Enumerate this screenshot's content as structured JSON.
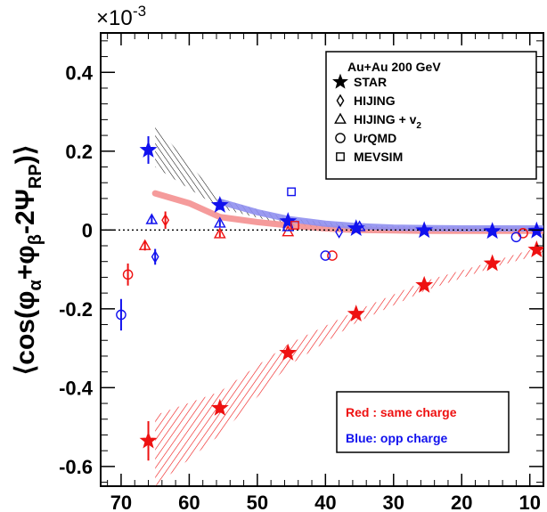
{
  "chart_data": {
    "type": "scatter",
    "title": "",
    "xlabel": "",
    "ylabel": "⟨cos(φα+φβ-2ΨRP)⟩",
    "ylabel_parts": {
      "open": "⟨cos(φ",
      "sub_alpha": "α",
      "plus_phi": "+φ",
      "sub_beta": "β",
      "minus_psi": "-2Ψ",
      "sub_rp": "RP",
      "close": ")⟩"
    },
    "y_scale_label": "×10",
    "y_scale_exponent": "-3",
    "xlim": [
      73,
      8
    ],
    "ylim": [
      -0.65,
      0.5
    ],
    "x_ticks": [
      70,
      60,
      50,
      40,
      30,
      20,
      10
    ],
    "x_tick_labels": [
      "70",
      "60",
      "50",
      "40",
      "30",
      "20",
      "10"
    ],
    "y_ticks": [
      -0.6,
      -0.4,
      -0.2,
      0,
      0.2,
      0.4
    ],
    "y_tick_labels": [
      "-0.6",
      "-0.4",
      "-0.2",
      "0",
      "0.2",
      "0.4"
    ],
    "reference_line": {
      "y": 0,
      "style": "dotted"
    },
    "legend": {
      "title": "Au+Au 200 GeV",
      "entries": [
        {
          "marker": "star",
          "label": "STAR"
        },
        {
          "marker": "diamond",
          "label": "HIJING"
        },
        {
          "marker": "triangle",
          "label": "HIJING + v",
          "sub": "2"
        },
        {
          "marker": "circle",
          "label": "UrQMD"
        },
        {
          "marker": "square",
          "label": "MEVSIM"
        }
      ]
    },
    "annotations": [
      {
        "text": "Red : same charge",
        "color": "#ee1111"
      },
      {
        "text": "Blue:  opp charge",
        "color": "#1111ee"
      }
    ],
    "colors": {
      "same": "#ee1111",
      "opp": "#1111ee",
      "same_band": "#f49090",
      "opp_band": "#8f8ff0"
    },
    "series": [
      {
        "name": "STAR same charge",
        "marker": "star",
        "filled": true,
        "color": "same",
        "points": [
          {
            "x": 66,
            "y": -0.535,
            "err": 0.05
          },
          {
            "x": 55.5,
            "y": -0.452,
            "err": 0.012
          },
          {
            "x": 45.5,
            "y": -0.312,
            "err": 0.008
          },
          {
            "x": 35.5,
            "y": -0.213,
            "err": 0.006
          },
          {
            "x": 25.5,
            "y": -0.14,
            "err": 0.005
          },
          {
            "x": 15.5,
            "y": -0.085,
            "err": 0.004
          },
          {
            "x": 9,
            "y": -0.05,
            "err": 0.004
          }
        ]
      },
      {
        "name": "STAR opp charge",
        "marker": "star",
        "filled": true,
        "color": "opp",
        "points": [
          {
            "x": 66,
            "y": 0.203,
            "err": 0.035
          },
          {
            "x": 55.5,
            "y": 0.063,
            "err": 0.012
          },
          {
            "x": 45.5,
            "y": 0.022,
            "err": 0.008
          },
          {
            "x": 35.5,
            "y": 0.004,
            "err": 0.006
          },
          {
            "x": 25.5,
            "y": -0.001,
            "err": 0.005
          },
          {
            "x": 15.5,
            "y": -0.003,
            "err": 0.004
          },
          {
            "x": 9,
            "y": -0.002,
            "err": 0.004
          }
        ]
      },
      {
        "name": "HIJING same charge",
        "marker": "diamond",
        "filled": false,
        "color": "same",
        "points": [
          {
            "x": 63.5,
            "y": 0.025,
            "err": 0.022
          }
        ]
      },
      {
        "name": "HIJING opp charge",
        "marker": "diamond",
        "filled": false,
        "color": "opp",
        "points": [
          {
            "x": 65,
            "y": -0.068,
            "err": 0.02
          },
          {
            "x": 38,
            "y": -0.005,
            "err": 0
          }
        ]
      },
      {
        "name": "HIJING+v2 same charge",
        "marker": "triangle",
        "filled": false,
        "color": "same",
        "points": [
          {
            "x": 66.5,
            "y": -0.04,
            "err": 0.012
          },
          {
            "x": 55.5,
            "y": -0.01,
            "err": 0.008
          },
          {
            "x": 45.5,
            "y": -0.005,
            "err": 0
          }
        ]
      },
      {
        "name": "HIJING+v2 opp charge",
        "marker": "triangle",
        "filled": false,
        "color": "opp",
        "points": [
          {
            "x": 65.5,
            "y": 0.026,
            "err": 0.01
          },
          {
            "x": 55.5,
            "y": 0.017,
            "err": 0.008
          },
          {
            "x": 45.5,
            "y": 0.008,
            "err": 0
          },
          {
            "x": 35,
            "y": 0.008,
            "err": 0
          }
        ]
      },
      {
        "name": "UrQMD same charge",
        "marker": "circle",
        "filled": false,
        "color": "same",
        "points": [
          {
            "x": 69,
            "y": -0.113,
            "err": 0.028
          },
          {
            "x": 39,
            "y": -0.065,
            "err": 0
          },
          {
            "x": 11,
            "y": -0.008,
            "err": 0
          }
        ]
      },
      {
        "name": "UrQMD opp charge",
        "marker": "circle",
        "filled": false,
        "color": "opp",
        "points": [
          {
            "x": 70,
            "y": -0.215,
            "err": 0.04
          },
          {
            "x": 40,
            "y": -0.065,
            "err": 0
          },
          {
            "x": 12,
            "y": -0.018,
            "err": 0
          }
        ]
      },
      {
        "name": "MEVSIM same charge",
        "marker": "square",
        "filled": false,
        "color": "same",
        "points": [
          {
            "x": 44.5,
            "y": 0.012,
            "err": 0
          }
        ]
      },
      {
        "name": "MEVSIM opp charge",
        "marker": "square",
        "filled": false,
        "color": "opp",
        "points": [
          {
            "x": 45,
            "y": 0.097,
            "err": 0
          }
        ]
      }
    ],
    "bands": [
      {
        "name": "same charge expectation band",
        "color": "same",
        "x": [
          65,
          55.5,
          45.5,
          35.5,
          25.5,
          15.5,
          8
        ],
        "upper": [
          -0.47,
          -0.41,
          -0.29,
          -0.205,
          -0.13,
          -0.08,
          -0.04
        ],
        "lower": [
          -0.65,
          -0.52,
          -0.345,
          -0.235,
          -0.155,
          -0.095,
          -0.06
        ]
      },
      {
        "name": "opp charge expectation band",
        "color": "opp",
        "x": [
          65,
          55.5,
          45.5,
          35.5,
          25.5,
          15.5,
          8
        ],
        "upper": [
          0.265,
          0.08,
          0.03,
          0.012,
          0.008,
          0.006,
          0.005
        ],
        "lower": [
          0.16,
          0.055,
          0.012,
          0.001,
          -0.002,
          -0.003,
          -0.003
        ]
      }
    ],
    "curves": [
      {
        "name": "same charge model curve",
        "color": "same_band",
        "x": [
          65,
          60,
          55.5,
          50,
          45.5,
          40,
          35.5,
          30,
          25.5,
          20,
          15.5,
          10,
          8
        ],
        "y": [
          0.093,
          0.068,
          0.033,
          0.02,
          0.012,
          0.004,
          0,
          -0.001,
          -0.002,
          -0.002,
          -0.002,
          -0.002,
          -0.002
        ]
      },
      {
        "name": "opp charge model curve",
        "color": "opp_band",
        "x": [
          55.5,
          50,
          45.5,
          40,
          35.5,
          30,
          25.5,
          20,
          15.5,
          10,
          8
        ],
        "y": [
          0.072,
          0.045,
          0.028,
          0.016,
          0.01,
          0.006,
          0.005,
          0.004,
          0.004,
          0.004,
          0.004
        ]
      }
    ]
  }
}
